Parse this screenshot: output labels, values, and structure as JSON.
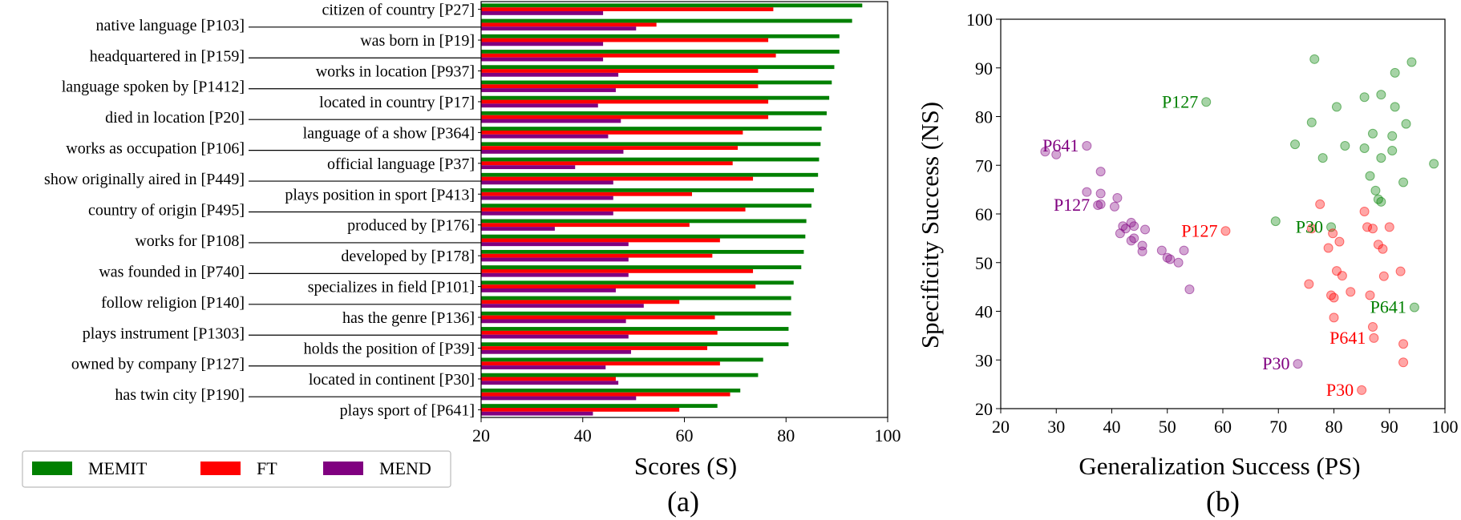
{
  "chart_data": [
    {
      "type": "bar",
      "orientation": "horizontal",
      "panel_label": "(a)",
      "xlabel": "Scores (S)",
      "ylabel": "",
      "xlim": [
        20,
        100
      ],
      "xticks": [
        20,
        40,
        60,
        80,
        100
      ],
      "legend_placement": "bottom-left",
      "categories": [
        "citizen of country [P27]",
        "native language [P103]",
        "was born in [P19]",
        "headquartered in [P159]",
        "works in location [P937]",
        "language spoken by [P1412]",
        "located in country [P17]",
        "died in location [P20]",
        "language of a show [P364]",
        "works as occupation [P106]",
        "official language [P37]",
        "show originally aired in [P449]",
        "plays position in sport [P413]",
        "country of origin [P495]",
        "produced by [P176]",
        "works for [P108]",
        "developed by [P178]",
        "was founded in [P740]",
        "specializes in field [P101]",
        "follow religion [P140]",
        "has the genre [P136]",
        "plays instrument [P1303]",
        "holds the position of [P39]",
        "owned by company [P127]",
        "located in continent [P30]",
        "has twin city [P190]",
        "plays sport of [P641]"
      ],
      "series": [
        {
          "name": "MEMIT",
          "color": "#008000",
          "values": [
            95.0,
            93.0,
            90.5,
            90.5,
            89.5,
            89.0,
            88.5,
            88.0,
            87.0,
            86.8,
            86.5,
            86.3,
            85.5,
            85.0,
            84.0,
            83.8,
            83.5,
            83.0,
            81.5,
            81.0,
            81.0,
            80.5,
            80.5,
            75.5,
            74.5,
            71.0,
            66.5
          ]
        },
        {
          "name": "FT",
          "color": "#ff0000",
          "values": [
            77.5,
            54.5,
            76.5,
            78.0,
            74.5,
            74.5,
            76.5,
            76.5,
            71.5,
            70.5,
            69.5,
            73.5,
            61.5,
            72.0,
            61.0,
            67.0,
            65.5,
            73.5,
            74.0,
            59.0,
            66.0,
            66.5,
            64.5,
            67.0,
            46.5,
            69.0,
            59.0
          ]
        },
        {
          "name": "MEND",
          "color": "#800080",
          "values": [
            44.0,
            50.5,
            44.0,
            44.0,
            47.0,
            46.5,
            43.0,
            47.5,
            45.0,
            48.0,
            38.5,
            46.0,
            46.0,
            46.0,
            34.5,
            49.0,
            49.0,
            49.0,
            46.5,
            52.0,
            48.5,
            49.0,
            49.5,
            44.5,
            47.0,
            50.5,
            42.0
          ]
        }
      ]
    },
    {
      "type": "scatter",
      "panel_label": "(b)",
      "xlabel": "Generalization Success (PS)",
      "ylabel": "Specificity Success (NS)",
      "xlim": [
        20,
        100
      ],
      "ylim": [
        20,
        100
      ],
      "xticks": [
        20,
        30,
        40,
        50,
        60,
        70,
        80,
        90,
        100
      ],
      "yticks": [
        20,
        30,
        40,
        50,
        60,
        70,
        80,
        90,
        100
      ],
      "series": [
        {
          "name": "MEMIT",
          "color": "#008000",
          "points": [
            [
              76.5,
              91.8
            ],
            [
              94.0,
              91.2
            ],
            [
              91.0,
              89.0
            ],
            [
              88.5,
              84.5
            ],
            [
              85.5,
              84.0
            ],
            [
              57.0,
              83.0
            ],
            [
              80.5,
              82.0
            ],
            [
              91.0,
              82.0
            ],
            [
              76.0,
              78.8
            ],
            [
              93.0,
              78.5
            ],
            [
              87.0,
              76.5
            ],
            [
              90.5,
              76.0
            ],
            [
              82.0,
              74.0
            ],
            [
              73.0,
              74.3
            ],
            [
              85.5,
              73.5
            ],
            [
              90.5,
              73.0
            ],
            [
              88.5,
              71.5
            ],
            [
              78.0,
              71.5
            ],
            [
              98.0,
              70.3
            ],
            [
              86.5,
              67.8
            ],
            [
              92.5,
              66.5
            ],
            [
              87.5,
              64.8
            ],
            [
              88.0,
              63.0
            ],
            [
              88.5,
              62.5
            ],
            [
              69.5,
              58.5
            ],
            [
              79.5,
              57.3
            ],
            [
              94.5,
              40.8
            ]
          ]
        },
        {
          "name": "FT",
          "color": "#ff0000",
          "points": [
            [
              77.5,
              62.0
            ],
            [
              85.5,
              60.5
            ],
            [
              60.5,
              56.5
            ],
            [
              76.0,
              57.0
            ],
            [
              86.0,
              57.3
            ],
            [
              90.0,
              57.3
            ],
            [
              87.0,
              57.0
            ],
            [
              79.8,
              56.0
            ],
            [
              81.0,
              54.3
            ],
            [
              88.0,
              53.7
            ],
            [
              79.0,
              53.0
            ],
            [
              88.8,
              52.8
            ],
            [
              80.5,
              48.3
            ],
            [
              92.0,
              48.2
            ],
            [
              81.5,
              47.3
            ],
            [
              89.0,
              47.2
            ],
            [
              75.5,
              45.6
            ],
            [
              83.0,
              44.0
            ],
            [
              86.5,
              43.3
            ],
            [
              79.5,
              43.3
            ],
            [
              80.0,
              42.8
            ],
            [
              80.0,
              38.7
            ],
            [
              87.0,
              36.8
            ],
            [
              87.2,
              34.5
            ],
            [
              92.5,
              33.3
            ],
            [
              92.5,
              29.5
            ],
            [
              85.0,
              23.8
            ]
          ]
        },
        {
          "name": "MEND",
          "color": "#800080",
          "points": [
            [
              35.5,
              74.0
            ],
            [
              28.0,
              72.8
            ],
            [
              30.0,
              72.2
            ],
            [
              38.0,
              68.7
            ],
            [
              35.5,
              64.5
            ],
            [
              38.0,
              64.2
            ],
            [
              41.0,
              63.3
            ],
            [
              38.0,
              62.0
            ],
            [
              37.5,
              61.8
            ],
            [
              40.5,
              61.5
            ],
            [
              43.5,
              58.2
            ],
            [
              42.0,
              57.5
            ],
            [
              42.5,
              57.0
            ],
            [
              44.0,
              57.5
            ],
            [
              46.0,
              56.8
            ],
            [
              41.5,
              56.0
            ],
            [
              44.0,
              55.0
            ],
            [
              43.5,
              54.5
            ],
            [
              45.5,
              53.5
            ],
            [
              45.5,
              52.3
            ],
            [
              49.0,
              52.5
            ],
            [
              53.0,
              52.5
            ],
            [
              50.0,
              51.0
            ],
            [
              50.5,
              50.7
            ],
            [
              52.0,
              50.0
            ],
            [
              54.0,
              44.5
            ],
            [
              73.5,
              29.2
            ]
          ]
        }
      ],
      "annotations": [
        {
          "text": "P127",
          "color": "#008000",
          "x": 57.0,
          "y": 83.0
        },
        {
          "text": "P641",
          "color": "#800080",
          "x": 35.5,
          "y": 74.0
        },
        {
          "text": "P127",
          "color": "#800080",
          "x": 37.5,
          "y": 61.8
        },
        {
          "text": "P127",
          "color": "#ff0000",
          "x": 60.5,
          "y": 56.5
        },
        {
          "text": "P30",
          "color": "#008000",
          "x": 79.5,
          "y": 57.3
        },
        {
          "text": "P641",
          "color": "#008000",
          "x": 94.5,
          "y": 40.8
        },
        {
          "text": "P641",
          "color": "#ff0000",
          "x": 87.2,
          "y": 34.5
        },
        {
          "text": "P30",
          "color": "#800080",
          "x": 73.5,
          "y": 29.2
        },
        {
          "text": "P30",
          "color": "#ff0000",
          "x": 85.0,
          "y": 23.8
        }
      ]
    }
  ]
}
